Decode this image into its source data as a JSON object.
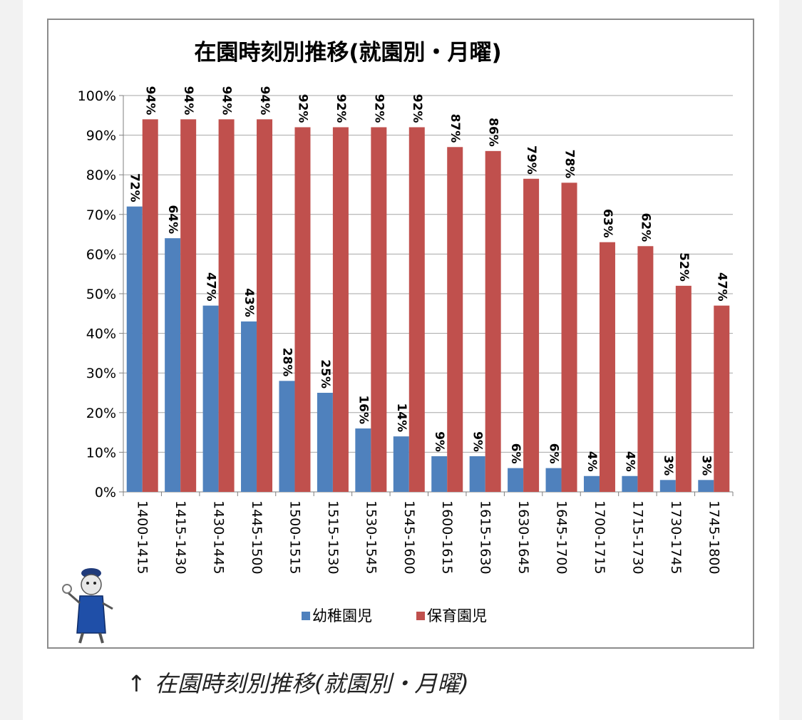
{
  "caption": {
    "arrow": "↑",
    "text": "在園時刻別推移(就園別・月曜)"
  },
  "colors": {
    "kindergarten": "#4f81bd",
    "nursery": "#c0504d",
    "grid": "#a6a6a6",
    "axis": "#7f7f7f",
    "text": "#000000"
  },
  "chart_data": {
    "type": "bar",
    "title": "在園時刻別推移(就園別・月曜)",
    "xlabel": "",
    "ylabel": "",
    "ylim": [
      0,
      100
    ],
    "yticks": [
      "0%",
      "10%",
      "20%",
      "30%",
      "40%",
      "50%",
      "60%",
      "70%",
      "80%",
      "90%",
      "100%"
    ],
    "grid": true,
    "legend": "bottom",
    "categories": [
      "1400-1415",
      "1415-1430",
      "1430-1445",
      "1445-1500",
      "1500-1515",
      "1515-1530",
      "1530-1545",
      "1545-1600",
      "1600-1615",
      "1615-1630",
      "1630-1645",
      "1645-1700",
      "1700-1715",
      "1715-1730",
      "1730-1745",
      "1745-1800"
    ],
    "series": [
      {
        "name": "幼稚園児",
        "color": "#4f81bd",
        "values": [
          72,
          64,
          47,
          43,
          28,
          25,
          16,
          14,
          9,
          9,
          6,
          6,
          4,
          4,
          3,
          3
        ],
        "labels": [
          "72%",
          "64%",
          "47%",
          "43%",
          "28%",
          "25%",
          "16%",
          "14%",
          "9%",
          "9%",
          "6%",
          "6%",
          "4%",
          "4%",
          "3%",
          "3%"
        ]
      },
      {
        "name": "保育園児",
        "color": "#c0504d",
        "values": [
          94,
          94,
          94,
          94,
          92,
          92,
          92,
          92,
          87,
          86,
          79,
          78,
          63,
          62,
          52,
          47
        ],
        "labels": [
          "94%",
          "94%",
          "94%",
          "94%",
          "92%",
          "92%",
          "92%",
          "92%",
          "87%",
          "86%",
          "79%",
          "78%",
          "63%",
          "62%",
          "52%",
          "47%"
        ]
      }
    ]
  }
}
